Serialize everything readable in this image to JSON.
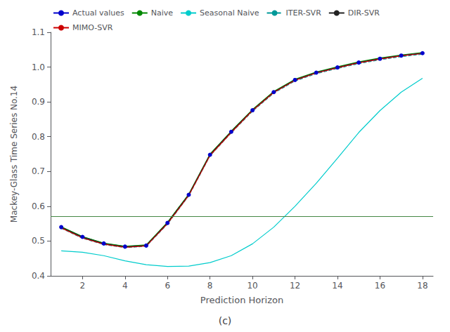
{
  "chart_data": {
    "type": "line",
    "title": "(c)",
    "xlabel": "Prediction Horizon",
    "ylabel": "Mackey-Glass Time Series No.14",
    "x": [
      1,
      2,
      3,
      4,
      5,
      6,
      7,
      8,
      9,
      10,
      11,
      12,
      13,
      14,
      15,
      16,
      17,
      18
    ],
    "xlim": [
      0.5,
      18.5
    ],
    "xticks": [
      2,
      4,
      6,
      8,
      10,
      12,
      14,
      16,
      18
    ],
    "ylim": [
      0.4,
      1.1
    ],
    "yticks": [
      0.4,
      0.5,
      0.6,
      0.7,
      0.8,
      0.9,
      {
        "value": 1.0,
        "label": "1.0"
      },
      1.1
    ],
    "grid": false,
    "legend": "upper left",
    "series": [
      {
        "name": "Actual values",
        "color": "#0000CC",
        "marker": "circle",
        "line_style": "solid",
        "values": [
          0.54,
          0.512,
          0.493,
          0.484,
          0.487,
          0.552,
          0.633,
          0.748,
          0.814,
          0.876,
          0.928,
          0.963,
          0.984,
          0.999,
          1.013,
          1.024,
          1.033,
          1.04
        ]
      },
      {
        "name": "Naive",
        "color": "#008800",
        "line_style": "solid",
        "values": [
          0.541,
          0.513,
          0.494,
          0.485,
          0.489,
          0.554,
          0.635,
          0.75,
          0.816,
          0.878,
          0.93,
          0.965,
          0.986,
          1.001,
          1.015,
          1.026,
          1.035,
          1.042
        ]
      },
      {
        "name": "Seasonal Naive",
        "color": "#00CCCC",
        "line_style": "solid",
        "values": [
          0.472,
          0.468,
          0.458,
          0.443,
          0.432,
          0.427,
          0.428,
          0.438,
          0.458,
          0.492,
          0.54,
          0.6,
          0.666,
          0.738,
          0.812,
          0.875,
          0.928,
          0.968
        ]
      },
      {
        "name": "ITER-SVR",
        "color": "#009999",
        "line_style": "dashed",
        "values": [
          0.537,
          0.508,
          0.49,
          0.481,
          0.485,
          0.549,
          0.63,
          0.745,
          0.811,
          0.873,
          0.925,
          0.96,
          0.981,
          0.996,
          1.01,
          1.021,
          1.03,
          1.037
        ]
      },
      {
        "name": "DIR-SVR",
        "color": "#222222",
        "line_style": "solid",
        "values": [
          0.539,
          0.511,
          0.492,
          0.483,
          0.487,
          0.552,
          0.633,
          0.748,
          0.814,
          0.876,
          0.928,
          0.963,
          0.984,
          0.999,
          1.013,
          1.024,
          1.033,
          1.04
        ]
      },
      {
        "name": "MIMO-SVR",
        "color": "#CC0000",
        "line_style": "solid",
        "values": [
          0.538,
          0.509,
          0.491,
          0.482,
          0.486,
          0.55,
          0.631,
          0.746,
          0.812,
          0.875,
          0.927,
          0.962,
          0.983,
          0.998,
          1.012,
          1.023,
          1.032,
          1.039
        ]
      }
    ],
    "reference_lines": [
      {
        "y": 0.572,
        "color": "#448844",
        "line_style": "solid"
      }
    ]
  }
}
